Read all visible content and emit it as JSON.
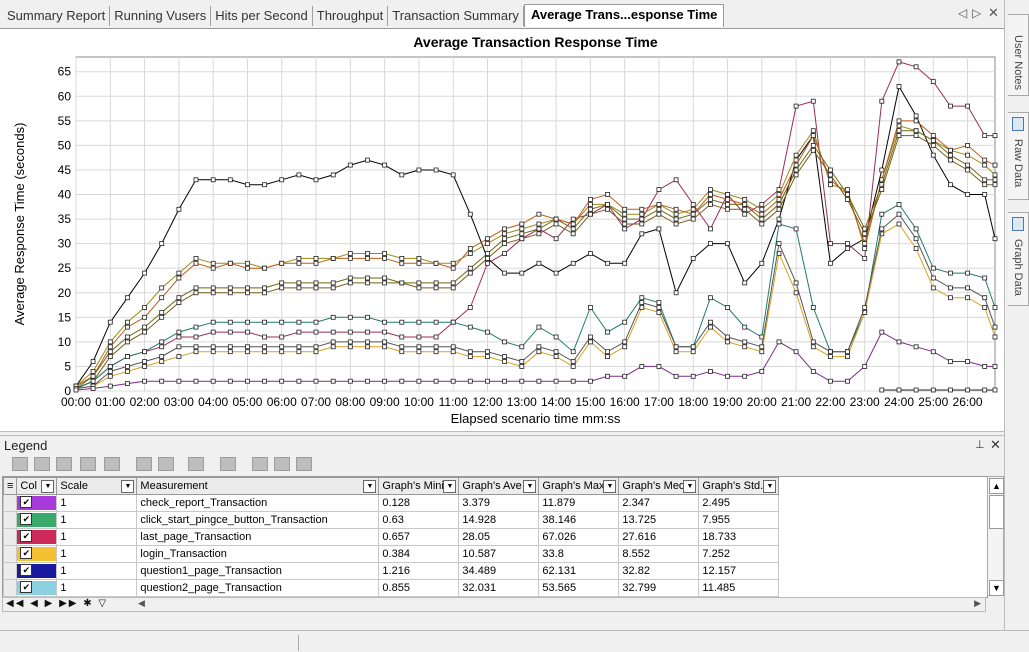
{
  "tabs": [
    "Summary Report",
    "Running Vusers",
    "Hits per Second",
    "Throughput",
    "Transaction Summary",
    "Average Trans...esponse Time"
  ],
  "active_tab": 5,
  "side_tabs": [
    "User Notes",
    "Raw Data",
    "Graph Data"
  ],
  "legend_title": "Legend",
  "chart_data": {
    "type": "line",
    "title": "Average Transaction Response Time",
    "xlabel": "Elapsed scenario time mm:ss",
    "ylabel": "Average Response Time (seconds)",
    "ylim": [
      0,
      68
    ],
    "yticks": [
      0,
      5,
      10,
      15,
      20,
      25,
      30,
      35,
      40,
      45,
      50,
      55,
      60,
      65
    ],
    "xticks": [
      "00:00",
      "01:00",
      "02:00",
      "03:00",
      "04:00",
      "05:00",
      "06:00",
      "07:00",
      "08:00",
      "09:00",
      "10:00",
      "11:00",
      "12:00",
      "13:00",
      "14:00",
      "15:00",
      "16:00",
      "17:00",
      "18:00",
      "19:00",
      "20:00",
      "21:00",
      "22:00",
      "23:00",
      "24:00",
      "25:00",
      "26:00"
    ],
    "xlim_minutes": [
      0,
      26.8
    ],
    "grid": true,
    "legend": "none",
    "series": [
      {
        "color": "#000000",
        "x": [
          0,
          0.5,
          1,
          1.5,
          2,
          2.5,
          3,
          3.5,
          4,
          4.5,
          5,
          5.5,
          6,
          6.5,
          7,
          7.5,
          8,
          8.5,
          9,
          9.5,
          10,
          10.5,
          11,
          11.5,
          12,
          12.5,
          13,
          13.5,
          14,
          14.5,
          15,
          15.5,
          16,
          16.5,
          17,
          17.5,
          18,
          18.5,
          19,
          19.5,
          20,
          20.5,
          21,
          21.5,
          22,
          22.5,
          23,
          23.5,
          24,
          24.5,
          25,
          25.5,
          26,
          26.5,
          26.8
        ],
        "y": [
          1,
          6,
          14,
          19,
          24,
          30,
          37,
          43,
          43,
          43,
          42,
          42,
          43,
          44,
          43,
          44,
          46,
          47,
          46,
          44,
          45,
          45,
          44,
          36,
          27,
          24,
          24,
          26,
          24,
          26,
          28,
          26,
          26,
          32,
          33,
          20,
          27,
          30,
          30,
          22,
          26,
          35,
          47,
          52,
          26,
          29,
          31,
          45,
          62,
          56,
          48,
          42,
          40,
          40,
          31
        ]
      },
      {
        "color": "#9b2a5a",
        "x": [
          0,
          0.5,
          1,
          1.5,
          2,
          2.5,
          3,
          3.5,
          4,
          4.5,
          5,
          5.5,
          6,
          6.5,
          7,
          7.5,
          8,
          8.5,
          9,
          9.5,
          10,
          10.5,
          11,
          11.5,
          12,
          12.5,
          13,
          13.5,
          14,
          14.5,
          15,
          15.5,
          16,
          16.5,
          17,
          17.5,
          18,
          18.5,
          19,
          19.5,
          20,
          20.5,
          21,
          21.5,
          22,
          22.5,
          23,
          23.5,
          24,
          24.5,
          25,
          25.5,
          26,
          26.5,
          26.8
        ],
        "y": [
          0.5,
          2,
          5,
          7,
          8,
          9,
          11,
          11,
          12,
          12,
          12,
          11,
          11,
          12,
          12,
          12,
          12,
          12,
          12,
          11,
          11,
          11,
          14,
          17,
          26,
          28,
          31,
          33,
          31,
          35,
          36,
          38,
          33,
          35,
          41,
          43,
          38,
          33,
          40,
          36,
          38,
          41,
          58,
          59,
          30,
          30,
          27,
          59,
          67,
          66,
          63,
          58,
          58,
          52,
          52
        ]
      },
      {
        "color": "#9b8a1a",
        "x": [
          0,
          0.5,
          1,
          1.5,
          2,
          2.5,
          3,
          3.5,
          4,
          4.5,
          5,
          5.5,
          6,
          6.5,
          7,
          7.5,
          8,
          8.5,
          9,
          9.5,
          10,
          10.5,
          11,
          11.5,
          12,
          12.5,
          13,
          13.5,
          14,
          14.5,
          15,
          15.5,
          16,
          16.5,
          17,
          17.5,
          18,
          18.5,
          19,
          19.5,
          20,
          20.5,
          21,
          21.5,
          22,
          22.5,
          23,
          23.5,
          24,
          24.5,
          25,
          25.5,
          26,
          26.5,
          26.8
        ],
        "y": [
          1,
          4,
          10,
          14,
          17,
          21,
          24,
          27,
          26,
          26,
          26,
          25,
          26,
          27,
          27,
          27,
          28,
          28,
          28,
          27,
          27,
          26,
          26,
          28,
          30,
          32,
          33,
          34,
          35,
          34,
          38,
          38,
          36,
          36,
          38,
          36,
          37,
          41,
          40,
          39,
          37,
          40,
          48,
          53,
          42,
          41,
          29,
          43,
          54,
          53,
          51,
          49,
          48,
          46,
          44
        ]
      },
      {
        "color": "#c05a18",
        "x": [
          0,
          0.5,
          1,
          1.5,
          2,
          2.5,
          3,
          3.5,
          4,
          4.5,
          5,
          5.5,
          6,
          6.5,
          7,
          7.5,
          8,
          8.5,
          9,
          9.5,
          10,
          10.5,
          11,
          11.5,
          12,
          12.5,
          13,
          13.5,
          14,
          14.5,
          15,
          15.5,
          16,
          16.5,
          17,
          17.5,
          18,
          18.5,
          19,
          19.5,
          20,
          20.5,
          21,
          21.5,
          22,
          22.5,
          23,
          23.5,
          24,
          24.5,
          25,
          25.5,
          26,
          26.5,
          26.8
        ],
        "y": [
          1,
          3,
          9,
          13,
          15,
          19,
          23,
          26,
          25,
          26,
          25,
          25,
          26,
          26,
          26,
          27,
          27,
          27,
          27,
          26,
          26,
          26,
          25,
          29,
          31,
          33,
          34,
          36,
          35,
          34,
          39,
          40,
          37,
          37,
          38,
          37,
          36,
          40,
          39,
          38,
          36,
          39,
          46,
          52,
          43,
          40,
          30,
          43,
          55,
          55,
          52,
          49,
          50,
          47,
          46
        ]
      },
      {
        "color": "#6a6a10",
        "x": [
          0,
          0.5,
          1,
          1.5,
          2,
          2.5,
          3,
          3.5,
          4,
          4.5,
          5,
          5.5,
          6,
          6.5,
          7,
          7.5,
          8,
          8.5,
          9,
          9.5,
          10,
          10.5,
          11,
          11.5,
          12,
          12.5,
          13,
          13.5,
          14,
          14.5,
          15,
          15.5,
          16,
          16.5,
          17,
          17.5,
          18,
          18.5,
          19,
          19.5,
          20,
          20.5,
          21,
          21.5,
          22,
          22.5,
          23,
          23.5,
          24,
          24.5,
          25,
          25.5,
          26,
          26.5,
          26.8
        ],
        "y": [
          0.5,
          3,
          8,
          11,
          13,
          16,
          19,
          21,
          21,
          21,
          21,
          21,
          22,
          22,
          22,
          22,
          23,
          23,
          23,
          22,
          22,
          22,
          22,
          25,
          28,
          31,
          32,
          33,
          35,
          33,
          37,
          38,
          35,
          35,
          37,
          35,
          36,
          39,
          38,
          38,
          35,
          38,
          45,
          50,
          45,
          40,
          33,
          42,
          53,
          53,
          51,
          48,
          46,
          43,
          43
        ]
      },
      {
        "color": "#7a5a1a",
        "x": [
          0,
          0.5,
          1,
          1.5,
          2,
          2.5,
          3,
          3.5,
          4,
          4.5,
          5,
          5.5,
          6,
          6.5,
          7,
          7.5,
          8,
          8.5,
          9,
          9.5,
          10,
          10.5,
          11,
          11.5,
          12,
          12.5,
          13,
          13.5,
          14,
          14.5,
          15,
          15.5,
          16,
          16.5,
          17,
          17.5,
          18,
          18.5,
          19,
          19.5,
          20,
          20.5,
          21,
          21.5,
          22,
          22.5,
          23,
          23.5,
          24,
          24.5,
          25,
          25.5,
          26,
          26.5,
          26.8
        ],
        "y": [
          0.5,
          2,
          7,
          10,
          12,
          15,
          18,
          20,
          20,
          20,
          20,
          20,
          21,
          21,
          21,
          21,
          22,
          22,
          22,
          22,
          21,
          21,
          21,
          24,
          27,
          30,
          31,
          32,
          34,
          32,
          36,
          37,
          34,
          34,
          36,
          34,
          35,
          38,
          37,
          37,
          34,
          37,
          44,
          49,
          44,
          39,
          32,
          41,
          52,
          52,
          50,
          47,
          45,
          42,
          42
        ]
      },
      {
        "color": "#1f7a6a",
        "x": [
          0,
          0.5,
          1,
          1.5,
          2,
          2.5,
          3,
          3.5,
          4,
          4.5,
          5,
          5.5,
          6,
          6.5,
          7,
          7.5,
          8,
          8.5,
          9,
          9.5,
          10,
          10.5,
          11,
          11.5,
          12,
          12.5,
          13,
          13.5,
          14,
          14.5,
          15,
          15.5,
          16,
          16.5,
          17,
          17.5,
          18,
          18.5,
          19,
          19.5,
          20,
          20.5,
          21,
          21.5,
          22,
          22.5,
          23,
          23.5,
          24,
          24.5,
          25,
          25.5,
          26,
          26.5,
          26.8
        ],
        "y": [
          0.5,
          2,
          5,
          7,
          8,
          10,
          12,
          13,
          14,
          14,
          14,
          14,
          14,
          14,
          14,
          15,
          15,
          15,
          14,
          14,
          14,
          14,
          14,
          13,
          12,
          10,
          9,
          13,
          11,
          8,
          17,
          12,
          14,
          19,
          18,
          9,
          9,
          19,
          17,
          13,
          11,
          34,
          33,
          17,
          8,
          8,
          16,
          36,
          38,
          33,
          25,
          24,
          24,
          23,
          17
        ]
      },
      {
        "color": "#d9a020",
        "x": [
          0,
          0.5,
          1,
          1.5,
          2,
          2.5,
          3,
          3.5,
          4,
          4.5,
          5,
          5.5,
          6,
          6.5,
          7,
          7.5,
          8,
          8.5,
          9,
          9.5,
          10,
          10.5,
          11,
          11.5,
          12,
          12.5,
          13,
          13.5,
          14,
          14.5,
          15,
          15.5,
          16,
          16.5,
          17,
          17.5,
          18,
          18.5,
          19,
          19.5,
          20,
          20.5,
          21,
          21.5,
          22,
          22.5,
          23,
          23.5,
          24,
          24.5,
          25,
          25.5,
          26,
          26.5,
          26.8
        ],
        "y": [
          0.5,
          1,
          3,
          4,
          5,
          6,
          7,
          8,
          8,
          8,
          8,
          8,
          8,
          8,
          8,
          9,
          9,
          9,
          9,
          8,
          8,
          8,
          8,
          7,
          7,
          6,
          5,
          8,
          7,
          5,
          10,
          7,
          9,
          17,
          16,
          8,
          8,
          13,
          10,
          9,
          8,
          28,
          20,
          9,
          7,
          7,
          16,
          32,
          34,
          29,
          21,
          19,
          19,
          17,
          11
        ]
      },
      {
        "color": "#555555",
        "x": [
          0,
          0.5,
          1,
          1.5,
          2,
          2.5,
          3,
          3.5,
          4,
          4.5,
          5,
          5.5,
          6,
          6.5,
          7,
          7.5,
          8,
          8.5,
          9,
          9.5,
          10,
          10.5,
          11,
          11.5,
          12,
          12.5,
          13,
          13.5,
          14,
          14.5,
          15,
          15.5,
          16,
          16.5,
          17,
          17.5,
          18,
          18.5,
          19,
          19.5,
          20,
          20.5,
          21,
          21.5,
          22,
          22.5,
          23,
          23.5,
          24,
          24.5,
          25,
          25.5,
          26,
          26.5,
          26.8
        ],
        "y": [
          0.5,
          1,
          4,
          5,
          6,
          7,
          9,
          9,
          9,
          9,
          9,
          9,
          9,
          9,
          9,
          10,
          10,
          10,
          10,
          9,
          9,
          9,
          9,
          8,
          8,
          7,
          6,
          9,
          8,
          6,
          11,
          8,
          10,
          18,
          17,
          9,
          9,
          14,
          11,
          10,
          9,
          30,
          22,
          10,
          8,
          8,
          17,
          33,
          36,
          31,
          23,
          21,
          21,
          19,
          13
        ]
      },
      {
        "color": "#7a2a8a",
        "x": [
          0,
          0.5,
          1,
          1.5,
          2,
          2.5,
          3,
          3.5,
          4,
          4.5,
          5,
          5.5,
          6,
          6.5,
          7,
          7.5,
          8,
          8.5,
          9,
          9.5,
          10,
          10.5,
          11,
          11.5,
          12,
          12.5,
          13,
          13.5,
          14,
          14.5,
          15,
          15.5,
          16,
          16.5,
          17,
          17.5,
          18,
          18.5,
          19,
          19.5,
          20,
          20.5,
          21,
          21.5,
          22,
          22.5,
          23,
          23.5,
          24,
          24.5,
          25,
          25.5,
          26,
          26.5,
          26.8
        ],
        "y": [
          0.2,
          0.5,
          1,
          1.5,
          2,
          2,
          2,
          2,
          2,
          2,
          2,
          2,
          2,
          2,
          2,
          2,
          2,
          2,
          2,
          2,
          2,
          2,
          2,
          2,
          2,
          2,
          2,
          2,
          2,
          2,
          2,
          3,
          3,
          5,
          5,
          3,
          3,
          4,
          3,
          3,
          4,
          10,
          8,
          4,
          2,
          2,
          5,
          12,
          10,
          9,
          8,
          6,
          6,
          5,
          5
        ]
      },
      {
        "color": "#2a2a2a",
        "x": [
          23.5,
          24,
          24.5,
          25,
          25.5,
          26,
          26.5,
          26.8
        ],
        "y": [
          0.2,
          0.2,
          0.2,
          0.2,
          0.2,
          0.2,
          0.2,
          0.2
        ]
      }
    ]
  },
  "legend_table": {
    "columns": [
      "Col",
      "Scale",
      "Measurement",
      "Graph's Mini",
      "Graph's Ave",
      "Graph's Max",
      "Graph's Med",
      "Graph's Std."
    ],
    "rows": [
      {
        "color": "#a83adc",
        "scale": "1",
        "measurement": "check_report_Transaction",
        "min": "0.128",
        "avg": "3.379",
        "max": "11.879",
        "med": "2.347",
        "std": "2.495"
      },
      {
        "color": "#3aaa6a",
        "scale": "1",
        "measurement": "click_start_pingce_button_Transaction",
        "min": "0.63",
        "avg": "14.928",
        "max": "38.146",
        "med": "13.725",
        "std": "7.955"
      },
      {
        "color": "#cc2a5a",
        "scale": "1",
        "measurement": "last_page_Transaction",
        "min": "0.657",
        "avg": "28.05",
        "max": "67.026",
        "med": "27.616",
        "std": "18.733"
      },
      {
        "color": "#f2c030",
        "scale": "1",
        "measurement": "login_Transaction",
        "min": "0.384",
        "avg": "10.587",
        "max": "33.8",
        "med": "8.552",
        "std": "7.252"
      },
      {
        "color": "#1a1aa0",
        "scale": "1",
        "measurement": "question1_page_Transaction",
        "min": "1.216",
        "avg": "34.489",
        "max": "62.131",
        "med": "32.82",
        "std": "12.157"
      },
      {
        "color": "#8ad0e0",
        "scale": "1",
        "measurement": "question2_page_Transaction",
        "min": "0.855",
        "avg": "32.031",
        "max": "53.565",
        "med": "32.799",
        "std": "11.485"
      }
    ]
  }
}
